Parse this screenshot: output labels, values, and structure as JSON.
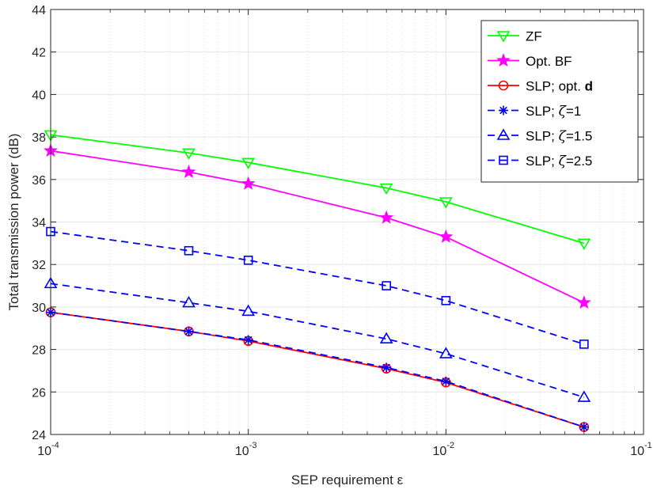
{
  "chart_data": {
    "type": "line",
    "title": "",
    "xlabel": "SEP requirement ε",
    "ylabel": "Total transmission power (dB)",
    "xscale": "log",
    "xlim": [
      0.0001,
      0.1
    ],
    "ylim": [
      24,
      44
    ],
    "grid": true,
    "legend_position": "top-right",
    "x": [
      0.0001,
      0.0005,
      0.001,
      0.005,
      0.01,
      0.05
    ],
    "x_ticks": [
      {
        "base": "10",
        "exp": "-4"
      },
      {
        "base": "10",
        "exp": "-3"
      },
      {
        "base": "10",
        "exp": "-2"
      },
      {
        "base": "10",
        "exp": "-1"
      }
    ],
    "y_ticks": [
      "24",
      "26",
      "28",
      "30",
      "32",
      "34",
      "36",
      "38",
      "40",
      "42",
      "44"
    ],
    "series": [
      {
        "name": "ZF",
        "label_parts": [
          "ZF"
        ],
        "color": "#00ff00",
        "dash": "solid",
        "marker": "triangle-down",
        "values": [
          38.1,
          37.25,
          36.8,
          35.6,
          34.95,
          33.0
        ]
      },
      {
        "name": "Opt. BF",
        "label_parts": [
          "Opt. BF"
        ],
        "color": "#ff00ff",
        "dash": "solid",
        "marker": "star",
        "values": [
          37.35,
          36.35,
          35.8,
          34.2,
          33.3,
          30.2
        ]
      },
      {
        "name": "SLP; opt. d",
        "label_parts": [
          "SLP; opt. ",
          "d"
        ],
        "color": "#ff0000",
        "dash": "solid",
        "marker": "circle",
        "values": [
          29.75,
          28.85,
          28.4,
          27.1,
          26.45,
          24.35
        ]
      },
      {
        "name": "SLP; ζ=1",
        "label_parts": [
          "SLP; ",
          "ζ",
          "=1"
        ],
        "color": "#0000ff",
        "dash": "dashed",
        "marker": "asterisk",
        "values": [
          29.75,
          28.85,
          28.45,
          27.15,
          26.5,
          24.35
        ]
      },
      {
        "name": "SLP; ζ=1.5",
        "label_parts": [
          "SLP; ",
          "ζ",
          "=1.5"
        ],
        "color": "#0000ff",
        "dash": "dashed",
        "marker": "triangle-up",
        "values": [
          31.1,
          30.2,
          29.8,
          28.5,
          27.8,
          25.75
        ]
      },
      {
        "name": "SLP; ζ=2.5",
        "label_parts": [
          "SLP; ",
          "ζ",
          "=2.5"
        ],
        "color": "#0000ff",
        "dash": "dashed",
        "marker": "square",
        "values": [
          33.55,
          32.65,
          32.2,
          31.0,
          30.3,
          28.25
        ]
      }
    ]
  }
}
